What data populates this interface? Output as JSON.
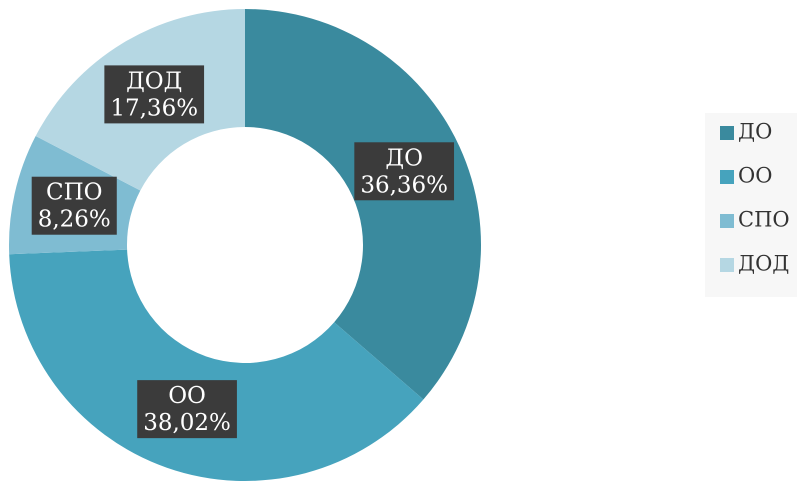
{
  "chart_data": {
    "type": "donut",
    "categories": [
      "ДО",
      "ОО",
      "СПО",
      "ДОД"
    ],
    "values": [
      36.36,
      38.02,
      8.26,
      17.36
    ],
    "value_labels": [
      "36,36%",
      "38,02%",
      "8,26%",
      "17,36%"
    ],
    "colors": [
      "#3a8a9e",
      "#46a3bd",
      "#7fbcd2",
      "#b5d7e3"
    ],
    "legend": "right"
  }
}
